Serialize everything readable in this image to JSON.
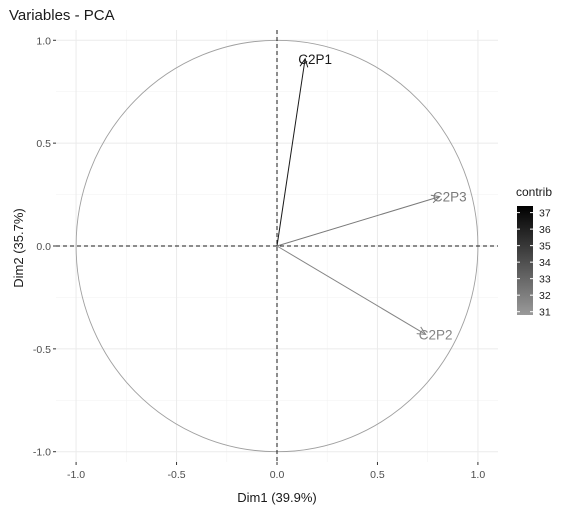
{
  "chart_data": {
    "type": "scatter",
    "title": "Variables - PCA",
    "xlabel": "Dim1 (39.9%)",
    "ylabel": "Dim2 (35.7%)",
    "xlim": [
      -1.1,
      1.1
    ],
    "ylim": [
      -1.05,
      1.05
    ],
    "x_ticks": [
      -1.0,
      -0.5,
      0.0,
      0.5,
      1.0
    ],
    "y_ticks": [
      -1.0,
      -0.5,
      0.0,
      0.5,
      1.0
    ],
    "x_tick_labels": [
      "-1.0",
      "-0.5",
      "0.0",
      "0.5",
      "1.0"
    ],
    "y_tick_labels": [
      "-1.0",
      "-0.5",
      "0.0",
      "0.5",
      "1.0"
    ],
    "grid": true,
    "correlation_circle": true,
    "reference_lines": [
      0,
      0
    ],
    "variables": [
      {
        "name": "C2P1",
        "x": 0.14,
        "y": 0.91,
        "contrib": 37.0,
        "color": "#1a1a1a"
      },
      {
        "name": "C2P3",
        "x": 0.81,
        "y": 0.24,
        "contrib": 32.2,
        "color": "#7a7a7a"
      },
      {
        "name": "C2P2",
        "x": 0.74,
        "y": -0.43,
        "contrib": 30.9,
        "color": "#858585"
      }
    ],
    "legend": {
      "title": "contrib",
      "placement": "right",
      "range": [
        30.8,
        37.4
      ],
      "ticks": [
        "37",
        "36",
        "35",
        "34",
        "33",
        "32",
        "31"
      ],
      "tick_values": [
        37,
        36,
        35,
        34,
        33,
        32,
        31
      ],
      "color_high": "#000000",
      "color_low": "#9a9a9a"
    }
  }
}
